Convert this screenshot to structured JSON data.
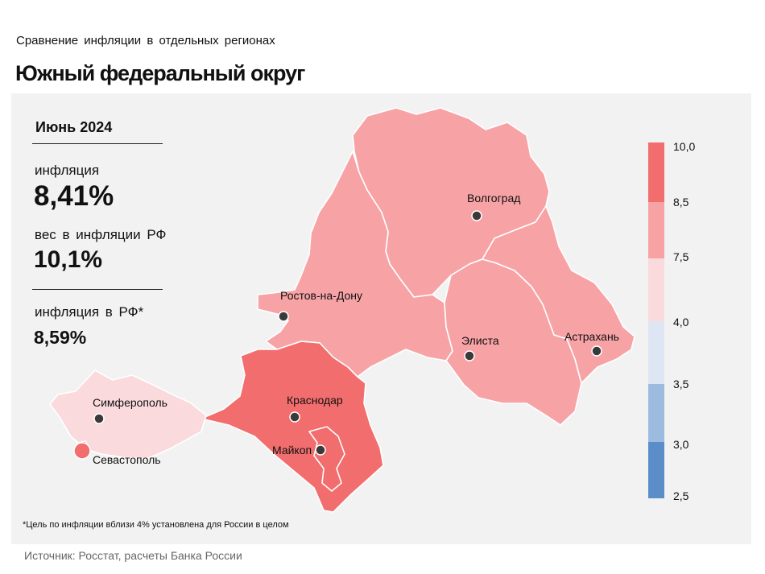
{
  "header": {
    "supertitle": "Сравнение  инфляции  в отдельных  регионах",
    "title": "Южный федеральный округ"
  },
  "panel": {
    "period": "Июнь 2024",
    "inflation_label": "инфляция",
    "inflation_value": "8,41%",
    "weight_label": "вес в инфляции  РФ",
    "weight_value": "10,1%",
    "rf_label": "инфляция  в РФ*",
    "rf_value": "8,59%"
  },
  "cities": {
    "volgograd": "Волгоград",
    "rostov": "Ростов-на-Дону",
    "elista": "Элиста",
    "astrakhan": "Астрахань",
    "krasnodar": "Краснодар",
    "maykop": "Майкоп",
    "simferopol": "Симферополь",
    "sevastopol": "Севастополь"
  },
  "legend": {
    "ticks": [
      "10,0",
      "8,5",
      "7,5",
      "4,0",
      "3,5",
      "3,0",
      "2,5"
    ],
    "colors": [
      "#f26d6d",
      "#f7a3a6",
      "#fadadd",
      "#dfe6f3",
      "#9dbbdf",
      "#5b8ec8"
    ]
  },
  "map_colors": {
    "high": "#f26d6d",
    "mid": "#f7a3a6",
    "low": "#fadadd",
    "border": "#ffffff"
  },
  "footnote": "*Цель по инфляции вблизи 4% установлена для России в целом",
  "source": "Источник: Росстат, расчеты Банка России"
}
